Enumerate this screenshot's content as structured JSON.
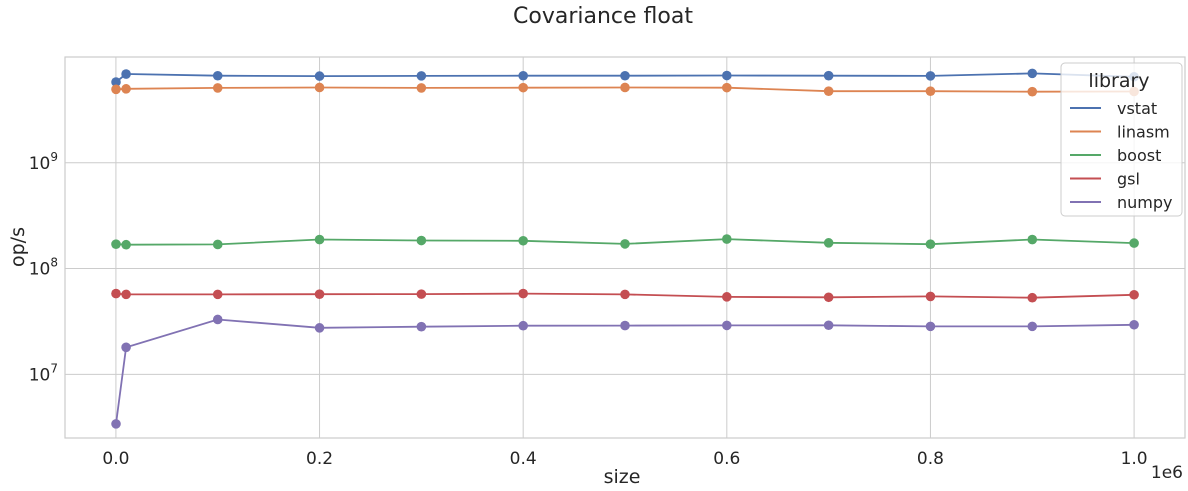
{
  "chart_data": {
    "type": "line",
    "title": "Covariance float",
    "xlabel": "size",
    "ylabel": "op/s",
    "x_offset_label": "1e6",
    "x_scale": "linear",
    "y_scale": "log",
    "xlim": [
      -50000,
      1050000
    ],
    "ylim": [
      2500000,
      10000000000
    ],
    "x_ticks": [
      0,
      200000,
      400000,
      600000,
      800000,
      1000000
    ],
    "x_tick_labels": [
      "0.0",
      "0.2",
      "0.4",
      "0.6",
      "0.8",
      "1.0"
    ],
    "y_ticks": [
      10000000,
      100000000,
      1000000000
    ],
    "y_tick_labels": [
      {
        "base": "10",
        "exp": "7"
      },
      {
        "base": "10",
        "exp": "8"
      },
      {
        "base": "10",
        "exp": "9"
      }
    ],
    "grid": true,
    "legend": {
      "title": "library",
      "position": "top-right"
    },
    "x": [
      100,
      10000,
      100000,
      200000,
      300000,
      400000,
      500000,
      600000,
      700000,
      800000,
      900000,
      1000000
    ],
    "series": [
      {
        "name": "vstat",
        "color": "#4c72b0",
        "values": [
          5800000000,
          6900000000,
          6650000000,
          6600000000,
          6630000000,
          6650000000,
          6650000000,
          6680000000,
          6660000000,
          6630000000,
          7000000000,
          6500000000
        ]
      },
      {
        "name": "linasm",
        "color": "#dd8452",
        "values": [
          4950000000,
          5000000000,
          5100000000,
          5150000000,
          5100000000,
          5130000000,
          5150000000,
          5130000000,
          4750000000,
          4750000000,
          4700000000,
          4720000000
        ]
      },
      {
        "name": "boost",
        "color": "#55a868",
        "values": [
          170000000,
          168000000,
          169000000,
          188000000,
          184000000,
          183000000,
          171000000,
          190000000,
          175000000,
          170000000,
          188000000,
          174000000
        ]
      },
      {
        "name": "gsl",
        "color": "#c44e52",
        "values": [
          58000000,
          57000000,
          57000000,
          57200000,
          57300000,
          58000000,
          57000000,
          54000000,
          53500000,
          54500000,
          53000000,
          56500000
        ]
      },
      {
        "name": "numpy",
        "color": "#8172b3",
        "values": [
          3400000,
          18000000,
          33000000,
          27500000,
          28200000,
          28800000,
          28900000,
          29000000,
          29100000,
          28400000,
          28400000,
          29400000
        ]
      }
    ]
  }
}
